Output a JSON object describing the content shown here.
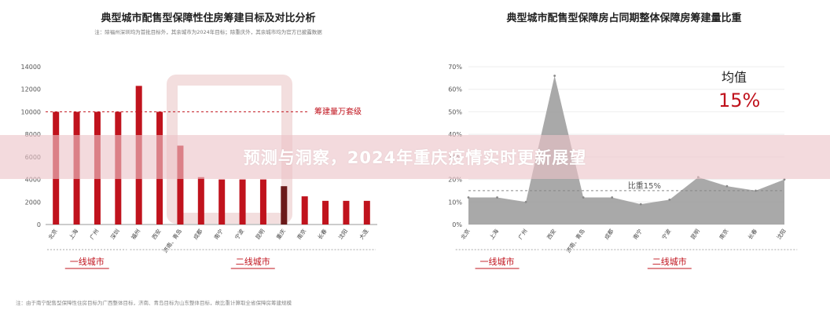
{
  "banner": {
    "text": "预测与洞察，2024年重庆疫情实时更新展望"
  },
  "colors": {
    "bar": "#c0131d",
    "bar_highlight": "#6b1a1a",
    "area": "#9a9a9a",
    "ref_line": "#c0131d",
    "accent_text": "#c0131d"
  },
  "chart_data": [
    {
      "type": "bar",
      "title": "典型城市配售型保障性住房筹建目标及对比分析",
      "note": "注：除福州深圳均为首批目标外，其余城市为2024年目标；除重庆外，其余城市均为官方已披露数据",
      "categories": [
        "北京",
        "上海",
        "广州",
        "深圳",
        "福州",
        "西安",
        "济南、青岛",
        "成都",
        "南宁",
        "宁波",
        "昆明",
        "重庆",
        "南京",
        "长春",
        "沈阳",
        "大连"
      ],
      "values": [
        10000,
        10000,
        10000,
        10000,
        12300,
        10000,
        7000,
        4200,
        4000,
        4000,
        4000,
        3400,
        2500,
        2100,
        2100,
        2100
      ],
      "highlight": "重庆",
      "ylim": [
        0,
        14000
      ],
      "yticks": [
        "0",
        "2000",
        "4000",
        "6000",
        "8000",
        "10000",
        "12000",
        "14000"
      ],
      "reference_line": {
        "value": 10000,
        "label": "筹建量万套级"
      },
      "groups": [
        {
          "label": "一线城市",
          "from": 0,
          "to": 3
        },
        {
          "label": "二线城市",
          "from": 4,
          "to": 15
        }
      ],
      "footnote": "注：由于南宁配售型保障性住房目标为广西整体目标，济南、青岛目标为山东整体目标，故比重计算取全省保障房筹建规模"
    },
    {
      "type": "area",
      "title": "典型城市配售型保障房占同期整体保障房筹建量比重",
      "categories": [
        "北京",
        "上海",
        "广州",
        "西安",
        "济南、青岛",
        "成都",
        "南宁",
        "宁波",
        "昆明",
        "南京",
        "长春",
        "沈阳"
      ],
      "values": [
        12,
        12,
        10,
        66,
        12,
        12,
        9,
        11,
        21,
        17,
        15,
        20
      ],
      "ylim": [
        0,
        70
      ],
      "yticks": [
        "0%",
        "10%",
        "20%",
        "30%",
        "40%",
        "50%",
        "60%",
        "70%"
      ],
      "reference_line": {
        "value": 15,
        "label": "比重15%"
      },
      "average": {
        "label": "均值",
        "value": "15%"
      },
      "groups": [
        {
          "label": "一线城市",
          "from": 0,
          "to": 2
        },
        {
          "label": "二线城市",
          "from": 3,
          "to": 11
        }
      ]
    }
  ]
}
